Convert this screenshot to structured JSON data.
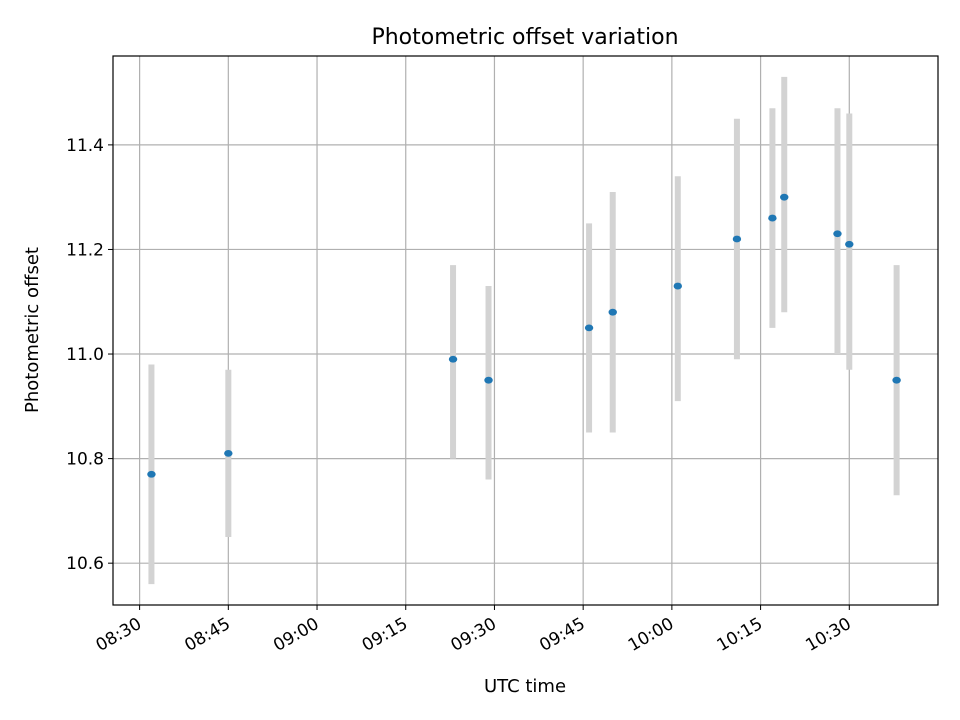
{
  "chart_data": {
    "type": "scatter",
    "title": "Photometric offset variation",
    "xlabel": "UTC time",
    "ylabel": "Photometric offset",
    "x_tick_labels": [
      "08:30",
      "08:45",
      "09:00",
      "09:15",
      "09:30",
      "09:45",
      "10:00",
      "10:15",
      "10:30"
    ],
    "y_tick_labels": [
      "10.6",
      "10.8",
      "11.0",
      "11.2",
      "11.4"
    ],
    "y_ticks": [
      10.6,
      10.8,
      11.0,
      11.2,
      11.4
    ],
    "x_ticks": [
      "08:30",
      "08:45",
      "09:00",
      "09:15",
      "09:30",
      "09:45",
      "10:00",
      "10:15",
      "10:30"
    ],
    "xlim": [
      "08:25:30",
      "10:45:00"
    ],
    "ylim": [
      10.52,
      11.57
    ],
    "grid": true,
    "legend": "none",
    "colors": {
      "point": "#1f77b4",
      "errorbar": "#d3d3d3",
      "grid": "#b0b0b0"
    },
    "points": [
      {
        "x": "08:32",
        "y": 10.77,
        "err_low": 10.56,
        "err_high": 10.98
      },
      {
        "x": "08:45",
        "y": 10.81,
        "err_low": 10.65,
        "err_high": 10.97
      },
      {
        "x": "09:23",
        "y": 10.99,
        "err_low": 10.8,
        "err_high": 11.17
      },
      {
        "x": "09:29",
        "y": 10.95,
        "err_low": 10.76,
        "err_high": 11.13
      },
      {
        "x": "09:46",
        "y": 11.05,
        "err_low": 10.85,
        "err_high": 11.25
      },
      {
        "x": "09:50",
        "y": 11.08,
        "err_low": 10.85,
        "err_high": 11.31
      },
      {
        "x": "10:01",
        "y": 11.13,
        "err_low": 10.91,
        "err_high": 11.34
      },
      {
        "x": "10:11",
        "y": 11.22,
        "err_low": 10.99,
        "err_high": 11.45
      },
      {
        "x": "10:17",
        "y": 11.26,
        "err_low": 11.05,
        "err_high": 11.47
      },
      {
        "x": "10:19",
        "y": 11.3,
        "err_low": 11.08,
        "err_high": 11.53
      },
      {
        "x": "10:28",
        "y": 11.23,
        "err_low": 11.0,
        "err_high": 11.47
      },
      {
        "x": "10:30",
        "y": 11.21,
        "err_low": 10.97,
        "err_high": 11.46
      },
      {
        "x": "10:38",
        "y": 10.95,
        "err_low": 10.73,
        "err_high": 11.17
      }
    ]
  }
}
